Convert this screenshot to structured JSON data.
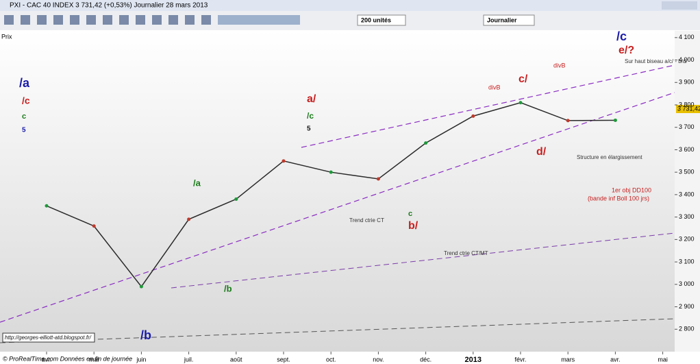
{
  "window": {
    "title": "PXI - CAC 40 INDEX   3 731,42 (+0,53%)   Journalier  28 mars 2013",
    "units": "200 unités",
    "period": "Journalier",
    "pane_label": "Prix",
    "last_price": "3 731,42",
    "footer": "© ProRealTime.com  Données en fin de journée"
  },
  "chart_data": {
    "type": "line",
    "categories": [
      "avr.",
      "mai",
      "juin",
      "juil.",
      "août",
      "sept.",
      "oct.",
      "nov.",
      "déc.",
      "2013",
      "févr.",
      "mars",
      "avr.",
      "mai"
    ],
    "series": [
      {
        "name": "CAC 40 INDEX",
        "color": "#2a2a2a",
        "values": [
          3350,
          3260,
          2990,
          3290,
          3380,
          3550,
          3500,
          3470,
          3630,
          3750,
          3810,
          3730,
          3731.42,
          null
        ]
      }
    ],
    "ylim": [
      2700,
      4130
    ],
    "yticks": [
      {
        "value": 2800,
        "label": "2 800"
      },
      {
        "value": 2900,
        "label": "2 900"
      },
      {
        "value": 3000,
        "label": "3 000"
      },
      {
        "value": 3100,
        "label": "3 100"
      },
      {
        "value": 3200,
        "label": "3 200"
      },
      {
        "value": 3300,
        "label": "3 300"
      },
      {
        "value": 3400,
        "label": "3 400"
      },
      {
        "value": 3500,
        "label": "3 500"
      },
      {
        "value": 3600,
        "label": "3 600"
      },
      {
        "value": 3700,
        "label": "3 700"
      },
      {
        "value": 3800,
        "label": "3 800"
      },
      {
        "value": 3900,
        "label": "3 900"
      },
      {
        "value": 4000,
        "label": "4 000"
      },
      {
        "value": 4100,
        "label": "4 100"
      }
    ],
    "annotations": [
      {
        "text": "/a",
        "color": "#1a1aa8"
      },
      {
        "text": "/c",
        "color": "#c81e1e"
      },
      {
        "text": "c",
        "color": "#1a7a1a"
      },
      {
        "text": "5",
        "color": "#1a1aa8"
      },
      {
        "text": "a/",
        "color": "#c81e1e"
      },
      {
        "text": "/c",
        "color": "#1a7a1a"
      },
      {
        "text": "5",
        "color": "#111111"
      },
      {
        "text": "/a",
        "color": "#1a7a1a"
      },
      {
        "text": "/b",
        "color": "#1a1aa8"
      },
      {
        "text": "/b",
        "color": "#1a7a1a"
      },
      {
        "text": "b/",
        "color": "#c81e1e"
      },
      {
        "text": "c",
        "color": "#1a7a1a"
      },
      {
        "text": "d/",
        "color": "#c81e1e"
      },
      {
        "text": "c/",
        "color": "#c81e1e"
      },
      {
        "text": "e/?",
        "color": "#c81e1e"
      },
      {
        "text": "/c",
        "color": "#1a1aa8"
      },
      {
        "text": "divB",
        "color": "#c81e1e"
      },
      {
        "text": "divB",
        "color": "#c81e1e"
      },
      {
        "text": "Sur haut biseau a/c/ - b/d/",
        "color": "#333333"
      },
      {
        "text": "Structure en élargissement",
        "color": "#333333"
      },
      {
        "text": "Trend ctrie CT",
        "color": "#333333"
      },
      {
        "text": "Trend ctrie CT/MT",
        "color": "#333333"
      },
      {
        "text": "1er obj DD100",
        "color": "#c81e1e"
      },
      {
        "text": "(bande inf Boll 100 jrs)",
        "color": "#c81e1e"
      },
      {
        "text": "http://georges-elliott-atd.blogspot.fr/",
        "color": "#111111"
      }
    ]
  }
}
